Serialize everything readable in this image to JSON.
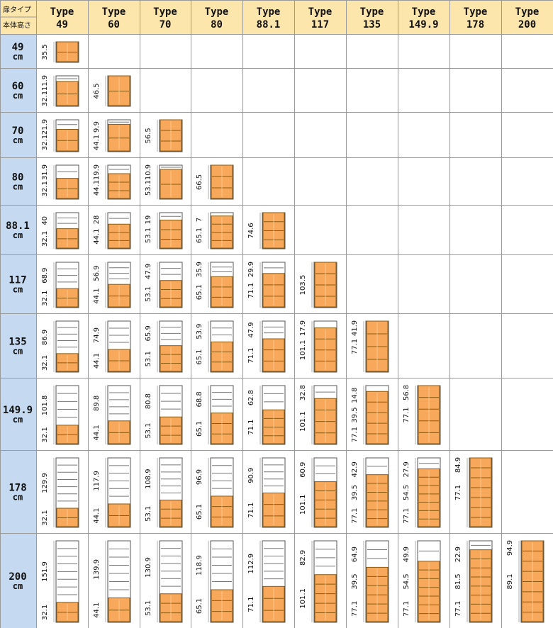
{
  "header": {
    "door_type_label": "扉タイプ",
    "body_height_label": "本体高さ"
  },
  "columns": [
    {
      "line1": "Type",
      "line2": "49",
      "value": 49
    },
    {
      "line1": "Type",
      "line2": "60",
      "value": 60
    },
    {
      "line1": "Type",
      "line2": "70",
      "value": 70
    },
    {
      "line1": "Type",
      "line2": "80",
      "value": 80
    },
    {
      "line1": "Type",
      "line2": "88.1",
      "value": 88.1
    },
    {
      "line1": "Type",
      "line2": "117",
      "value": 117
    },
    {
      "line1": "Type",
      "line2": "135",
      "value": 135
    },
    {
      "line1": "Type",
      "line2": "149.9",
      "value": 149.9
    },
    {
      "line1": "Type",
      "line2": "178",
      "value": 178
    },
    {
      "line1": "Type",
      "line2": "200",
      "value": 200
    }
  ],
  "rows": [
    {
      "line1": "49",
      "line2": "cm",
      "value": 49
    },
    {
      "line1": "60",
      "line2": "cm",
      "value": 60
    },
    {
      "line1": "70",
      "line2": "cm",
      "value": 70
    },
    {
      "line1": "80",
      "line2": "cm",
      "value": 80
    },
    {
      "line1": "88.1",
      "line2": "cm",
      "value": 88.1
    },
    {
      "line1": "117",
      "line2": "cm",
      "value": 117
    },
    {
      "line1": "135",
      "line2": "cm",
      "value": 135
    },
    {
      "line1": "149.9",
      "line2": "cm",
      "value": 149.9
    },
    {
      "line1": "178",
      "line2": "cm",
      "value": 178
    },
    {
      "line1": "200",
      "line2": "cm",
      "value": 200
    }
  ],
  "cells": [
    {
      "row": 0,
      "col": 0,
      "labels": [
        "35.5"
      ],
      "door_shelves": 2,
      "open_shelves": 0
    },
    {
      "row": 1,
      "col": 0,
      "labels": [
        "11.9",
        "32.1"
      ],
      "door_shelves": 2,
      "open_shelves": 1
    },
    {
      "row": 1,
      "col": 1,
      "labels": [
        "46.5"
      ],
      "door_shelves": 2,
      "open_shelves": 0
    },
    {
      "row": 2,
      "col": 0,
      "labels": [
        "21.9",
        "32.1"
      ],
      "door_shelves": 2,
      "open_shelves": 1
    },
    {
      "row": 2,
      "col": 1,
      "labels": [
        "9.9",
        "44.1"
      ],
      "door_shelves": 2,
      "open_shelves": 1
    },
    {
      "row": 2,
      "col": 2,
      "labels": [
        "56.5"
      ],
      "door_shelves": 3,
      "open_shelves": 0
    },
    {
      "row": 3,
      "col": 0,
      "labels": [
        "31.9",
        "32.1"
      ],
      "door_shelves": 2,
      "open_shelves": 1
    },
    {
      "row": 3,
      "col": 1,
      "labels": [
        "19.9",
        "44.1"
      ],
      "door_shelves": 3,
      "open_shelves": 1
    },
    {
      "row": 3,
      "col": 2,
      "labels": [
        "10.9",
        "53.1"
      ],
      "door_shelves": 2,
      "open_shelves": 1
    },
    {
      "row": 3,
      "col": 3,
      "labels": [
        "66.5"
      ],
      "door_shelves": 3,
      "open_shelves": 0
    },
    {
      "row": 4,
      "col": 0,
      "labels": [
        "40",
        "32.1"
      ],
      "door_shelves": 2,
      "open_shelves": 2
    },
    {
      "row": 4,
      "col": 1,
      "labels": [
        "28",
        "44.1"
      ],
      "door_shelves": 3,
      "open_shelves": 1
    },
    {
      "row": 4,
      "col": 2,
      "labels": [
        "19",
        "53.1"
      ],
      "door_shelves": 3,
      "open_shelves": 1
    },
    {
      "row": 4,
      "col": 3,
      "labels": [
        "7",
        "65.1"
      ],
      "door_shelves": 4,
      "open_shelves": 0
    },
    {
      "row": 4,
      "col": 4,
      "labels": [
        "74.6"
      ],
      "door_shelves": 4,
      "open_shelves": 0
    },
    {
      "row": 5,
      "col": 0,
      "labels": [
        "68.9",
        "32.1"
      ],
      "door_shelves": 2,
      "open_shelves": 3
    },
    {
      "row": 5,
      "col": 1,
      "labels": [
        "56.9",
        "44.1"
      ],
      "door_shelves": 2,
      "open_shelves": 3
    },
    {
      "row": 5,
      "col": 2,
      "labels": [
        "47.9",
        "53.1"
      ],
      "door_shelves": 3,
      "open_shelves": 2
    },
    {
      "row": 5,
      "col": 3,
      "labels": [
        "35.9",
        "65.1"
      ],
      "door_shelves": 3,
      "open_shelves": 2
    },
    {
      "row": 5,
      "col": 4,
      "labels": [
        "29.9",
        "71.1"
      ],
      "door_shelves": 3,
      "open_shelves": 1
    },
    {
      "row": 5,
      "col": 5,
      "labels": [
        "103.5"
      ],
      "door_shelves": 4,
      "open_shelves": 0
    },
    {
      "row": 6,
      "col": 0,
      "labels": [
        "86.9",
        "32.1"
      ],
      "door_shelves": 2,
      "open_shelves": 4
    },
    {
      "row": 6,
      "col": 1,
      "labels": [
        "74.9",
        "44.1"
      ],
      "door_shelves": 2,
      "open_shelves": 3
    },
    {
      "row": 6,
      "col": 2,
      "labels": [
        "65.9",
        "53.1"
      ],
      "door_shelves": 3,
      "open_shelves": 3
    },
    {
      "row": 6,
      "col": 3,
      "labels": [
        "53.9",
        "65.1"
      ],
      "door_shelves": 3,
      "open_shelves": 2
    },
    {
      "row": 6,
      "col": 4,
      "labels": [
        "47.9",
        "71.1"
      ],
      "door_shelves": 3,
      "open_shelves": 2
    },
    {
      "row": 6,
      "col": 5,
      "labels": [
        "17.9",
        "101.1"
      ],
      "door_shelves": 4,
      "open_shelves": 0
    },
    {
      "row": 6,
      "col": 6,
      "labels": [
        "41.9",
        "77.1"
      ],
      "door_shelves": 4,
      "open_shelves": 0
    },
    {
      "row": 7,
      "col": 0,
      "labels": [
        "101.8",
        "32.1"
      ],
      "door_shelves": 2,
      "open_shelves": 4
    },
    {
      "row": 7,
      "col": 1,
      "labels": [
        "89.8",
        "44.1"
      ],
      "door_shelves": 2,
      "open_shelves": 4
    },
    {
      "row": 7,
      "col": 2,
      "labels": [
        "80.8",
        "53.1"
      ],
      "door_shelves": 3,
      "open_shelves": 3
    },
    {
      "row": 7,
      "col": 3,
      "labels": [
        "68.8",
        "65.1"
      ],
      "door_shelves": 3,
      "open_shelves": 3
    },
    {
      "row": 7,
      "col": 4,
      "labels": [
        "62.8",
        "71.1"
      ],
      "door_shelves": 4,
      "open_shelves": 2
    },
    {
      "row": 7,
      "col": 5,
      "labels": [
        "32.8",
        "101.1"
      ],
      "door_shelves": 4,
      "open_shelves": 1
    },
    {
      "row": 7,
      "col": 6,
      "labels": [
        "14.8",
        "39.5",
        "77.1"
      ],
      "door_shelves": 5,
      "open_shelves": 0
    },
    {
      "row": 7,
      "col": 7,
      "labels": [
        "56.8",
        "77.1"
      ],
      "door_shelves": 5,
      "open_shelves": 0
    },
    {
      "row": 8,
      "col": 0,
      "labels": [
        "129.9",
        "32.1"
      ],
      "door_shelves": 2,
      "open_shelves": 6
    },
    {
      "row": 8,
      "col": 1,
      "labels": [
        "117.9",
        "44.1"
      ],
      "door_shelves": 2,
      "open_shelves": 5
    },
    {
      "row": 8,
      "col": 2,
      "labels": [
        "108.9",
        "53.1"
      ],
      "door_shelves": 3,
      "open_shelves": 5
    },
    {
      "row": 8,
      "col": 3,
      "labels": [
        "96.9",
        "65.1"
      ],
      "door_shelves": 3,
      "open_shelves": 4
    },
    {
      "row": 8,
      "col": 4,
      "labels": [
        "90.9",
        "71.1"
      ],
      "door_shelves": 3,
      "open_shelves": 4
    },
    {
      "row": 8,
      "col": 5,
      "labels": [
        "60.9",
        "101.1"
      ],
      "door_shelves": 5,
      "open_shelves": 2
    },
    {
      "row": 8,
      "col": 6,
      "labels": [
        "42.9",
        "39.5",
        "77.1"
      ],
      "door_shelves": 6,
      "open_shelves": 1
    },
    {
      "row": 8,
      "col": 7,
      "labels": [
        "27.9",
        "54.5",
        "77.1"
      ],
      "door_shelves": 7,
      "open_shelves": 1
    },
    {
      "row": 8,
      "col": 8,
      "labels": [
        "84.9",
        "77.1"
      ],
      "door_shelves": 7,
      "open_shelves": 0
    },
    {
      "row": 9,
      "col": 0,
      "labels": [
        "151.9",
        "32.1"
      ],
      "door_shelves": 2,
      "open_shelves": 7
    },
    {
      "row": 9,
      "col": 1,
      "labels": [
        "139.9",
        "44.1"
      ],
      "door_shelves": 2,
      "open_shelves": 6
    },
    {
      "row": 9,
      "col": 2,
      "labels": [
        "130.9",
        "53.1"
      ],
      "door_shelves": 3,
      "open_shelves": 6
    },
    {
      "row": 9,
      "col": 3,
      "labels": [
        "118.9",
        "65.1"
      ],
      "door_shelves": 3,
      "open_shelves": 5
    },
    {
      "row": 9,
      "col": 4,
      "labels": [
        "112.9",
        "71.1"
      ],
      "door_shelves": 3,
      "open_shelves": 5
    },
    {
      "row": 9,
      "col": 5,
      "labels": [
        "82.9",
        "101.1"
      ],
      "door_shelves": 5,
      "open_shelves": 3
    },
    {
      "row": 9,
      "col": 6,
      "labels": [
        "64.9",
        "39.5",
        "77.1"
      ],
      "door_shelves": 6,
      "open_shelves": 2
    },
    {
      "row": 9,
      "col": 7,
      "labels": [
        "49.9",
        "54.5",
        "77.1"
      ],
      "door_shelves": 7,
      "open_shelves": 1
    },
    {
      "row": 9,
      "col": 8,
      "labels": [
        "22.9",
        "81.5",
        "77.1"
      ],
      "door_shelves": 8,
      "open_shelves": 1
    },
    {
      "row": 9,
      "col": 9,
      "labels": [
        "94.9",
        "89.1"
      ],
      "door_shelves": 8,
      "open_shelves": 0
    }
  ],
  "colors": {
    "header_bg": "#fde6ab",
    "row_label_bg": "#c5d9f0",
    "grid_line": "#9a9a9a",
    "cabinet_outline": "#555555",
    "door_fill": "#f8a85a",
    "door_stroke": "#8a5a10",
    "open_fill": "#ffffff"
  }
}
